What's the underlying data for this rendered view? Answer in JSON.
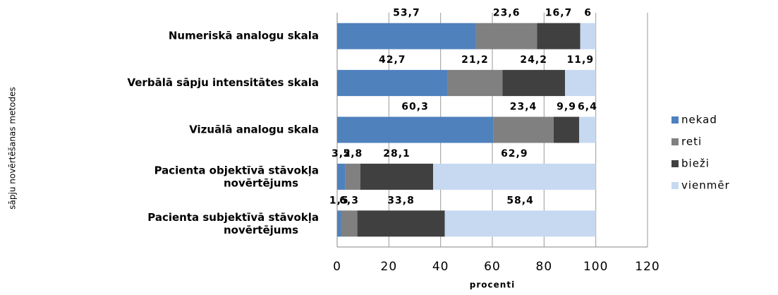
{
  "chart_data": {
    "type": "stacked_barh",
    "categories": [
      "Numeriskā analogu skala",
      "Verbālā sāpju intensitātes skala",
      "Vizuālā analogu skala",
      "Pacienta objektīvā stāvokļa novērtējums",
      "Pacienta subjektīvā stāvokļa novērtējums"
    ],
    "series": [
      {
        "name": "nekad",
        "color": "#4f81bd",
        "values": [
          53.7,
          42.7,
          60.3,
          3.2,
          1.5
        ],
        "value_labels": [
          "53,7",
          "42,7",
          "60,3",
          "3,2",
          "1,5"
        ]
      },
      {
        "name": "reti",
        "color": "#808080",
        "values": [
          23.6,
          21.2,
          23.4,
          5.8,
          6.3
        ],
        "value_labels": [
          "23,6",
          "21,2",
          "23,4",
          "5,8",
          "6,3"
        ]
      },
      {
        "name": "bieži",
        "color": "#404040",
        "values": [
          16.7,
          24.2,
          9.9,
          28.1,
          33.8
        ],
        "value_labels": [
          "16,7",
          "24,2",
          "9,9",
          "28,1",
          "33,8"
        ]
      },
      {
        "name": "vienmēr",
        "color": "#c6d9f1",
        "values": [
          6,
          11.9,
          6.4,
          62.9,
          58.4
        ],
        "value_labels": [
          "6",
          "11,9",
          "6,4",
          "62,9",
          "58,4"
        ]
      }
    ],
    "xlabel": "procenti",
    "ylabel": "sāpju novērtēšanas metodes",
    "xlim": [
      0,
      120
    ],
    "xticks": [
      0,
      20,
      40,
      60,
      80,
      100,
      120
    ],
    "grid": true,
    "legend": "right"
  }
}
